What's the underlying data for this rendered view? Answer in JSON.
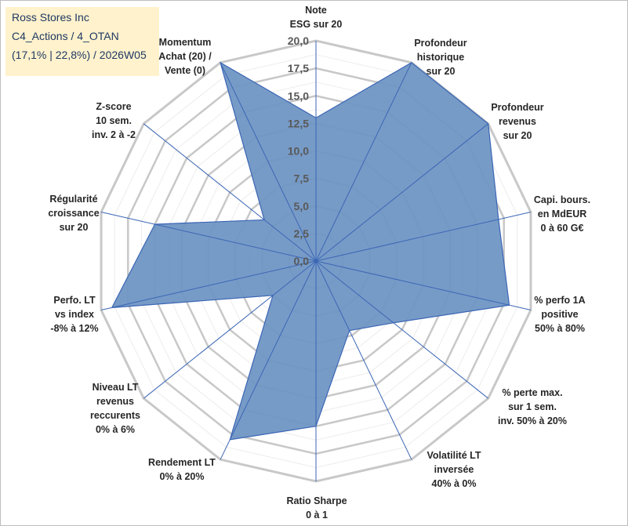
{
  "chart_data": {
    "type": "radar",
    "title_lines": [
      "Ross Stores Inc",
      "C4_Actions / 4_OTAN",
      "(17,1% | 22,8%) / 2026W05"
    ],
    "axes": [
      [
        "Note",
        "ESG sur 20"
      ],
      [
        "Profondeur",
        "historique",
        "sur 20"
      ],
      [
        "Profondeur",
        "revenus",
        "sur 20"
      ],
      [
        "Capi. bours.",
        "en MdEUR",
        "0 à 60 G€"
      ],
      [
        "% perfo 1A",
        "positive",
        "50% à 80%"
      ],
      [
        "% perte max.",
        "sur 1 sem.",
        "inv. 50% à 20%"
      ],
      [
        "Volatilité LT",
        "inversée",
        "40% à 0%"
      ],
      [
        "Ratio Sharpe",
        "0 à 1"
      ],
      [
        "Rendement LT",
        "0% à 20%"
      ],
      [
        "Niveau LT",
        "revenus",
        "reccurents",
        "0% à 6%"
      ],
      [
        "Perfo. LT",
        "vs index",
        "-8% à 12%"
      ],
      [
        "Régularité",
        "croissance",
        "sur 20"
      ],
      [
        "Z-score",
        "10 sem.",
        "inv. 2 à -2"
      ],
      [
        "Momentum",
        "Achat (20) /",
        "Vente (0)"
      ]
    ],
    "values": [
      13,
      20,
      20,
      17,
      18,
      9,
      7,
      15,
      18,
      5,
      19,
      15,
      6,
      20
    ],
    "rmax": 20,
    "ticks": [
      "0,0",
      "2,5",
      "5,0",
      "7,5",
      "10,0",
      "12,5",
      "15,0",
      "17,5",
      "20,0"
    ],
    "fill_color": "#7096c4",
    "line_color": "#3b66b5",
    "grid_color": "#c8c8c8"
  }
}
